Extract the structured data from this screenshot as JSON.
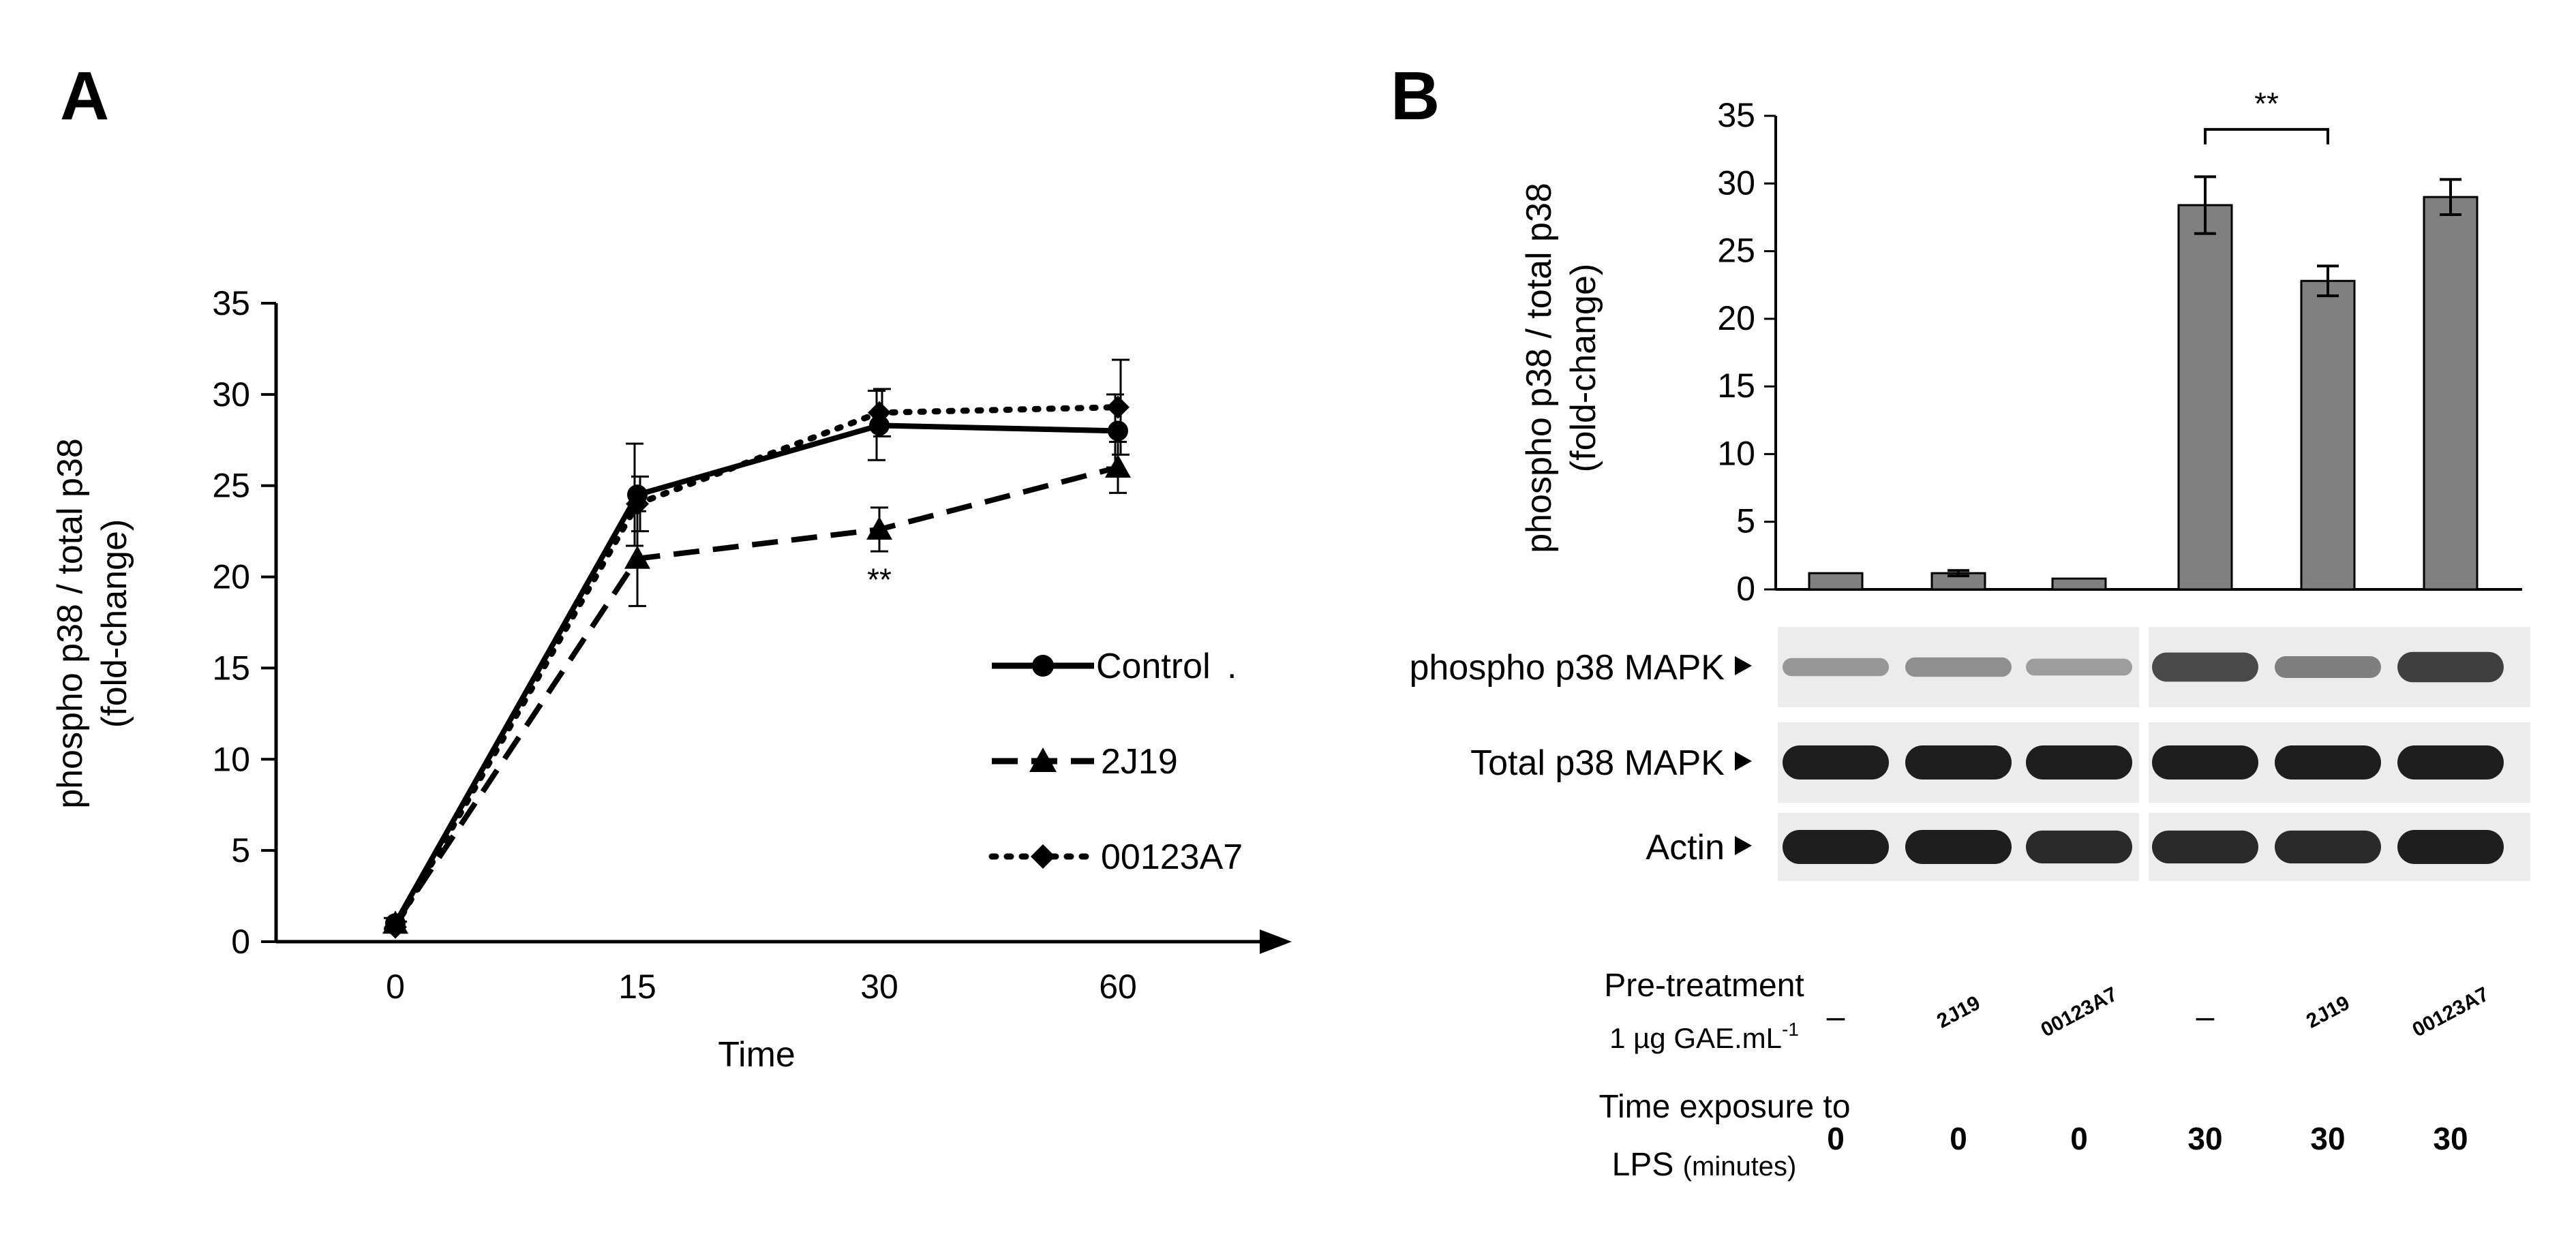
{
  "panels": {
    "a_letter": "A",
    "b_letter": "B"
  },
  "chart_data": [
    {
      "type": "line",
      "panel": "A",
      "ylabel_line1": "phospho  p38 / total  p38",
      "ylabel_line2": "(fold-change)",
      "xlabel": "Time",
      "x": [
        0,
        15,
        30,
        60
      ],
      "x_tick_labels": [
        "0",
        "15",
        "30",
        "60"
      ],
      "y_tick_labels": [
        "0",
        "5",
        "10",
        "15",
        "20",
        "25",
        "30",
        "35"
      ],
      "ylim": [
        0,
        35
      ],
      "series": [
        {
          "name": "Control",
          "style": "solid",
          "marker": "circle",
          "values": [
            1.0,
            24.5,
            28.3,
            28.0
          ],
          "errors": [
            0.3,
            2.8,
            1.9,
            2.0
          ]
        },
        {
          "name": "2J19",
          "style": "dashed",
          "marker": "triangle",
          "values": [
            1.0,
            21.0,
            22.6,
            26.0
          ],
          "errors": [
            0.3,
            2.6,
            1.2,
            1.4
          ]
        },
        {
          "name": "00123A7",
          "style": "dotted",
          "marker": "diamond",
          "values": [
            0.8,
            24.0,
            29.0,
            29.3
          ],
          "errors": [
            0.3,
            1.5,
            1.3,
            2.6
          ]
        }
      ],
      "annotations": [
        {
          "text": "**",
          "x": 30,
          "y": 20.0
        }
      ],
      "legend_suffix": "."
    },
    {
      "type": "bar",
      "panel": "B",
      "ylabel_line1": "phospho  p38 / total  p38",
      "ylabel_line2": "(fold-change)",
      "y_tick_labels": [
        "0",
        "5",
        "10",
        "15",
        "20",
        "25",
        "30",
        "35"
      ],
      "ylim": [
        0,
        35
      ],
      "values": [
        1.2,
        1.2,
        0.8,
        28.4,
        22.8,
        29.0
      ],
      "errors": [
        0.1,
        0.2,
        0.1,
        2.1,
        1.1,
        1.3
      ],
      "significance": {
        "text": "**",
        "from_bar": 3,
        "to_bar": 4,
        "y": 34.0
      },
      "bar_color": "#808080"
    }
  ],
  "blots": {
    "rows": [
      {
        "label": "phospho  p38 MAPK",
        "intensity": [
          0.35,
          0.4,
          0.3,
          0.8,
          0.5,
          0.85
        ]
      },
      {
        "label": "Total  p38 MAPK",
        "intensity": [
          1.0,
          1.0,
          1.0,
          1.0,
          1.0,
          1.0
        ]
      },
      {
        "label": "Actin",
        "intensity": [
          1.0,
          1.0,
          0.95,
          0.95,
          0.95,
          1.0
        ]
      }
    ]
  },
  "treatment": {
    "pretreat_line1": "Pre-treatment",
    "pretreat_line2": "1 µg GAE.mL",
    "pretreat_sup": "-1",
    "pretreat_values": [
      "–",
      "2J19",
      "00123A7",
      "–",
      "2J19",
      "00123A7"
    ],
    "time_line1": "Time exposure to",
    "time_line2_main": "LPS ",
    "time_line2_unit": "(minutes)",
    "time_values": [
      "0",
      "0",
      "0",
      "30",
      "30",
      "30"
    ]
  }
}
